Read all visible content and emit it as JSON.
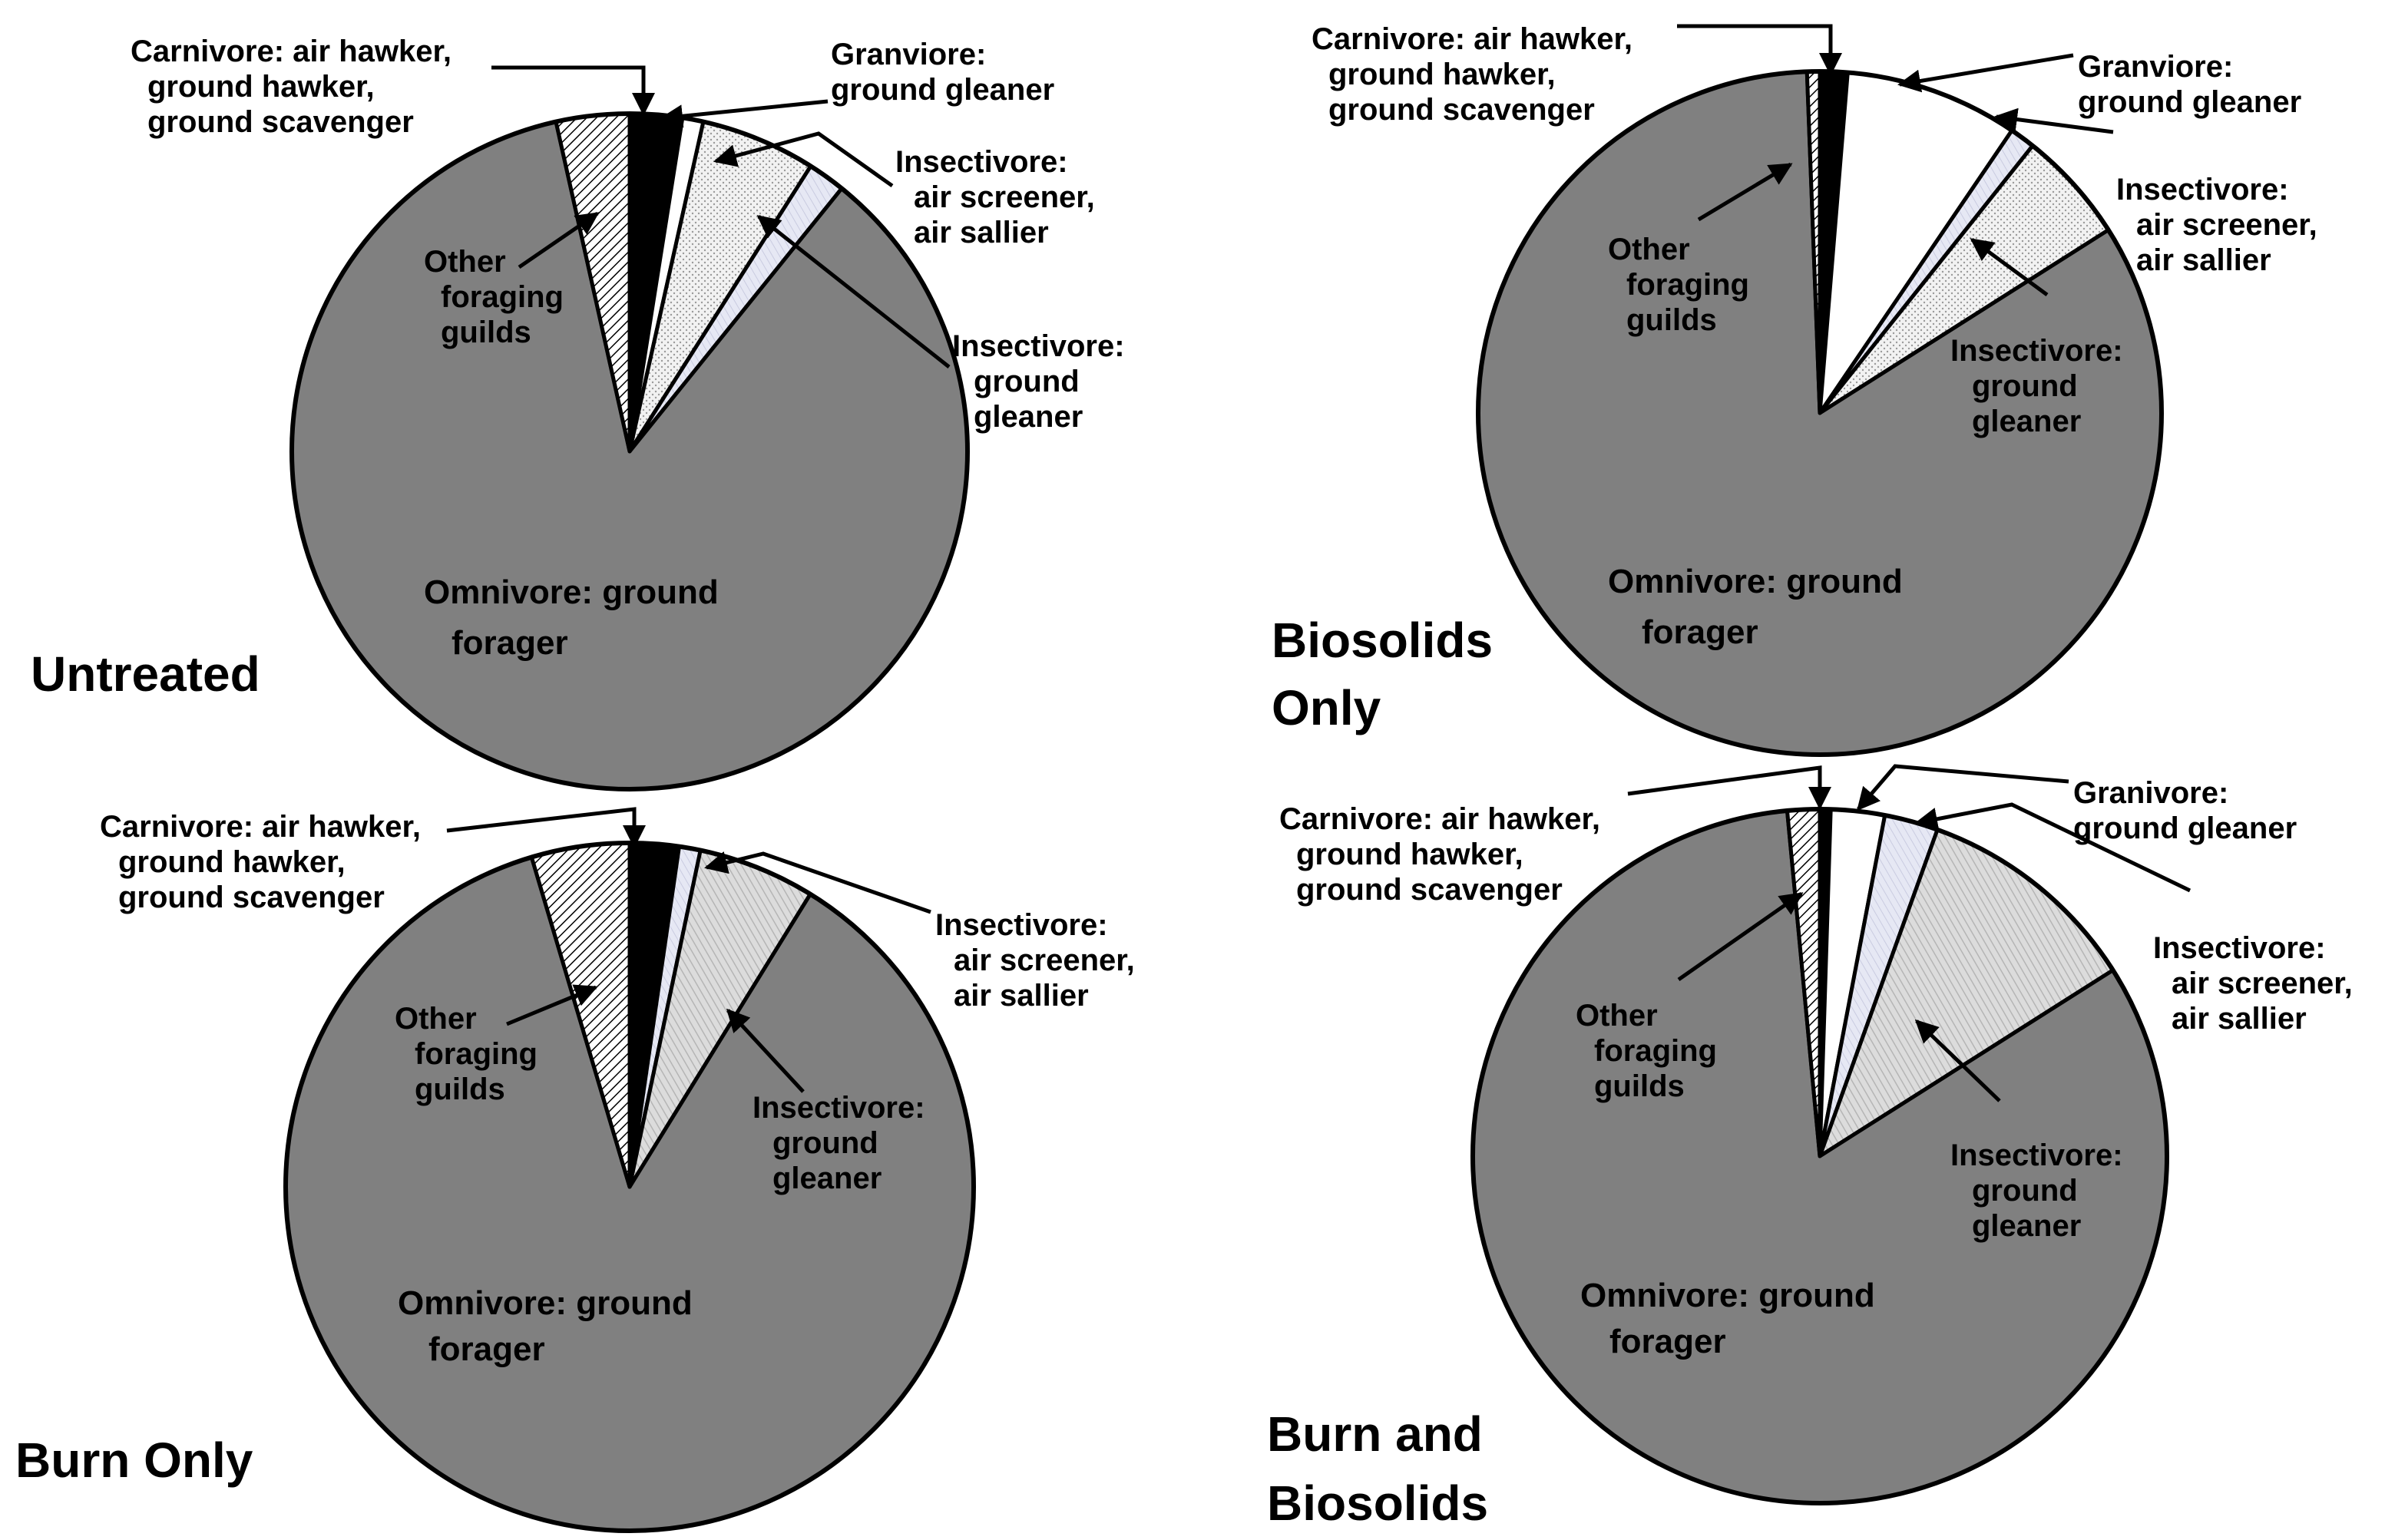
{
  "colors": {
    "carnivore": "#000000",
    "granivore": "#ffffff",
    "insectivore_air": "#e4e6f2",
    "insectivore_ground": "#f0f0f0",
    "omnivore": "#808080",
    "other": "#ffffff",
    "outline": "#000000"
  },
  "chart_data": [
    {
      "type": "pie",
      "title": "Untreated",
      "categories": [
        "Carnivore: air hawker, ground hawker, ground scavenger",
        "Granviore: ground gleaner",
        "Insectivore: ground gleaner",
        "Insectivore: air screener, air sallier",
        "Omnivore: ground forager",
        "Other foraging guilds"
      ],
      "values": [
        2.5,
        1.0,
        5.5,
        1.8,
        85.7,
        3.5
      ],
      "series": [
        {
          "values": [
            2.5,
            1.0,
            5.5,
            1.8,
            85.7,
            3.5
          ]
        }
      ],
      "labels": {
        "carnivore": [
          "Carnivore: air hawker,",
          "ground hawker,",
          "ground scavenger"
        ],
        "granivore": [
          "Granviore:",
          "ground gleaner"
        ],
        "insect_air": [
          "Insectivore:",
          "air screener,",
          "air sallier"
        ],
        "insect_ground": [
          "Insectivore:",
          "ground",
          "gleaner"
        ],
        "other": [
          "Other",
          "foraging",
          "guilds"
        ],
        "omnivore": [
          "Omnivore: ground",
          "forager"
        ]
      }
    },
    {
      "type": "pie",
      "title": "Biosolids Only",
      "title_lines": [
        "Biosolids",
        "Only"
      ],
      "categories": [
        "Carnivore: air hawker, ground hawker, ground scavenger",
        "Granviore: ground gleaner",
        "Insectivore: air screener, air sallier",
        "Insectivore: ground gleaner",
        "Omnivore: ground forager",
        "Other foraging guilds"
      ],
      "values": [
        1.3,
        8.2,
        1.2,
        5.3,
        83.4,
        0.6
      ],
      "series": [
        {
          "values": [
            1.3,
            8.2,
            1.2,
            5.3,
            83.4,
            0.6
          ]
        }
      ],
      "labels": {
        "carnivore": [
          "Carnivore: air hawker,",
          "ground hawker,",
          "ground scavenger"
        ],
        "granivore": [
          "Granviore:",
          "ground gleaner"
        ],
        "insect_air": [
          "Insectivore:",
          "air screener,",
          "air sallier"
        ],
        "insect_ground": [
          "Insectivore:",
          "ground",
          "gleaner"
        ],
        "other": [
          "Other",
          "foraging",
          "guilds"
        ],
        "omnivore": [
          "Omnivore: ground",
          "forager"
        ]
      }
    },
    {
      "type": "pie",
      "title": "Burn Only",
      "categories": [
        "Carnivore: air hawker, ground hawker, ground scavenger",
        "Insectivore: air screener, air sallier",
        "Insectivore: ground gleaner",
        "Omnivore: ground forager",
        "Other foraging guilds"
      ],
      "values": [
        2.3,
        1.0,
        5.5,
        86.6,
        4.6
      ],
      "series": [
        {
          "values": [
            2.3,
            1.0,
            5.5,
            86.6,
            4.6
          ]
        }
      ],
      "labels": {
        "carnivore": [
          "Carnivore: air hawker,",
          "ground hawker,",
          "ground scavenger"
        ],
        "insect_air": [
          "Insectivore:",
          "air screener,",
          "air sallier"
        ],
        "insect_ground": [
          "Insectivore:",
          "ground",
          "gleaner"
        ],
        "other": [
          "Other",
          "foraging",
          "guilds"
        ],
        "omnivore": [
          "Omnivore: ground",
          "forager"
        ]
      }
    },
    {
      "type": "pie",
      "title": "Burn and Biosolids",
      "title_lines": [
        "Burn and",
        "Biosolids"
      ],
      "categories": [
        "Carnivore: air hawker, ground hawker, ground scavenger",
        "Granivore: ground gleaner",
        "Insectivore: air screener, air sallier",
        "Insectivore: ground gleaner",
        "Omnivore: ground forager",
        "Other foraging guilds"
      ],
      "values": [
        0.5,
        2.5,
        2.5,
        10.5,
        82.5,
        1.5
      ],
      "series": [
        {
          "values": [
            0.5,
            2.5,
            2.5,
            10.5,
            82.5,
            1.5
          ]
        }
      ],
      "labels": {
        "carnivore": [
          "Carnivore: air hawker,",
          "ground hawker,",
          "ground scavenger"
        ],
        "granivore": [
          "Granivore:",
          "ground gleaner"
        ],
        "insect_air": [
          "Insectivore:",
          "air screener,",
          "air sallier"
        ],
        "insect_ground": [
          "Insectivore:",
          "ground",
          "gleaner"
        ],
        "other": [
          "Other",
          "foraging",
          "guilds"
        ],
        "omnivore": [
          "Omnivore: ground",
          "forager"
        ]
      }
    }
  ]
}
